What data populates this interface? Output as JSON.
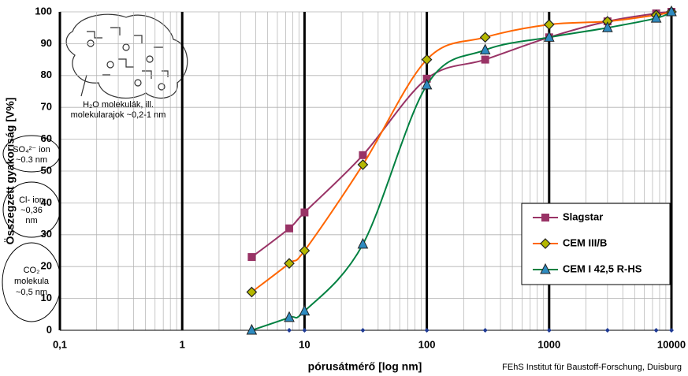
{
  "chart_data": {
    "type": "line",
    "x_label": "pórusátmérő [log nm]",
    "y_label": "Összegzett gyakoriság [V%]",
    "source": "FEhS Institut für Baustoff-Forschung, Duisburg",
    "log_x": true,
    "grid": true,
    "legend": "right",
    "x": [
      3.7,
      7.5,
      10,
      30,
      100,
      300,
      1000,
      3000,
      7500,
      10000
    ],
    "series": [
      {
        "name": "Slagstar",
        "color": "#993366",
        "marker": "square",
        "marker_color": "#993366",
        "values": [
          23,
          32,
          37,
          55,
          79,
          85,
          92,
          97,
          99.5,
          100
        ]
      },
      {
        "name": "CEM III/B",
        "color": "#ff6600",
        "marker": "diamond",
        "marker_color": "#b5b800",
        "values": [
          12,
          21,
          25,
          52,
          85,
          92,
          96,
          97,
          99,
          100
        ]
      },
      {
        "name": "CEM I 42,5 R-HS",
        "color": "#008040",
        "marker": "triangle",
        "marker_color": "#2e8bc0",
        "values": [
          0,
          4,
          6,
          27,
          77,
          88,
          92,
          95,
          98,
          100
        ]
      },
      {
        "color": "#1f3a93",
        "marker": "dot",
        "marker_color": "#1f3a93",
        "line": false,
        "values": [
          null,
          0,
          0,
          0,
          0,
          0,
          0,
          0,
          0,
          0
        ]
      }
    ],
    "xlim": [
      0.1,
      10000
    ],
    "xticks": [
      {
        "value": 0.1,
        "label": "0,1"
      },
      1,
      10,
      100,
      1000,
      10000
    ],
    "ylim": [
      0,
      100
    ],
    "yticks": [
      0,
      10,
      20,
      30,
      40,
      50,
      60,
      70,
      80,
      90,
      100
    ],
    "annotations": [
      {
        "lines": [
          "H₂O molekulák, ill.",
          "molekularajok ~0,2-1 nm"
        ]
      },
      {
        "lines": [
          "SO₄²⁻ ion",
          "~0.3 nm"
        ]
      },
      {
        "lines": [
          "Cl- ion",
          "~0,36",
          "nm"
        ]
      },
      {
        "lines": [
          "CO₂",
          "molekula",
          "~0,5 nm"
        ]
      }
    ]
  }
}
